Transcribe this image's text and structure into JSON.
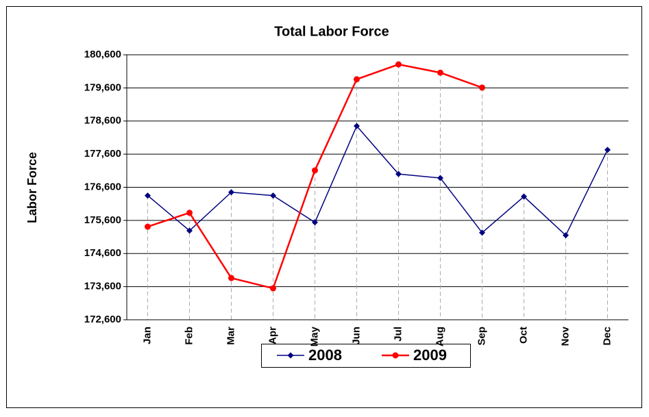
{
  "chart_data": {
    "type": "line",
    "title": "Total Labor Force",
    "y_label": "Labor Force",
    "categories": [
      "Jan",
      "Feb",
      "Mar",
      "Apr",
      "May",
      "Jun",
      "Jul",
      "Aug",
      "Sep",
      "Oct",
      "Nov",
      "Dec"
    ],
    "series": [
      {
        "name": "2008",
        "color": "#000080",
        "values": [
          176350,
          175290,
          176450,
          176350,
          175540,
          178450,
          177000,
          176880,
          175230,
          176320,
          175150,
          177730
        ]
      },
      {
        "name": "2009",
        "color": "#ff0000",
        "values": [
          175410,
          175830,
          173860,
          173550,
          177110,
          179860,
          180310,
          180060,
          179610,
          null,
          null,
          null
        ]
      }
    ],
    "ylim": [
      172600,
      180600
    ],
    "yticks": [
      {
        "value": 172600,
        "label": "172,600"
      },
      {
        "value": 173600,
        "label": "173,600"
      },
      {
        "value": 174600,
        "label": "174,600"
      },
      {
        "value": 175600,
        "label": "175,600"
      },
      {
        "value": 176600,
        "label": "176,600"
      },
      {
        "value": 177600,
        "label": "177,600"
      },
      {
        "value": 178600,
        "label": "178,600"
      },
      {
        "value": 179600,
        "label": "179,600"
      },
      {
        "value": 180600,
        "label": "180,600"
      }
    ],
    "grid": true,
    "legend": "bottom"
  }
}
